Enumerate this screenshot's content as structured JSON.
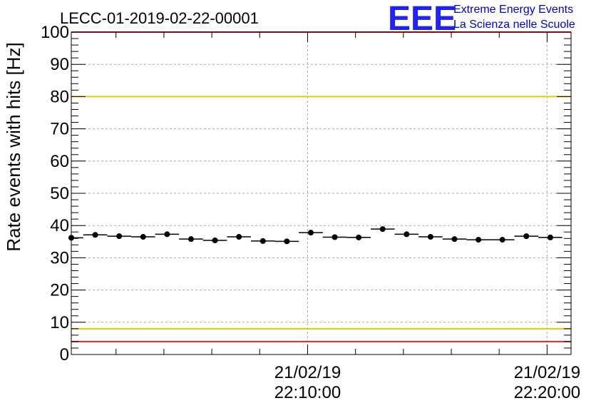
{
  "chart_data": {
    "type": "scatter",
    "title": "LECC-01-2019-02-22-00001",
    "xlabel": "",
    "ylabel": "Rate events with hits [Hz]",
    "ylim": [
      0,
      100
    ],
    "yticks": [
      0,
      10,
      20,
      30,
      40,
      50,
      60,
      70,
      80,
      90,
      100
    ],
    "xlim": [
      "21/02/19 22:00:08",
      "21/02/19 22:21:00"
    ],
    "xtick_labels": [
      {
        "at": "21/02/19 22:10:00",
        "date": "21/02/19",
        "time": "22:10:00"
      },
      {
        "at": "21/02/19 22:20:00",
        "date": "21/02/19",
        "time": "22:20:00"
      }
    ],
    "grid": true,
    "reference_lines": [
      {
        "y": 100,
        "color": "#e8222a"
      },
      {
        "y": 80,
        "color": "#f0c010"
      },
      {
        "y": 8,
        "color": "#f0c010"
      },
      {
        "y": 4,
        "color": "#e8222a"
      }
    ],
    "series": [
      {
        "x": [
          "21/02/19 22:00:08",
          "21/02/19 22:01:08",
          "21/02/19 22:02:08",
          "21/02/19 22:03:08",
          "21/02/19 22:04:08",
          "21/02/19 22:05:08",
          "21/02/19 22:06:08",
          "21/02/19 22:07:08",
          "21/02/19 22:08:08",
          "21/02/19 22:09:08",
          "21/02/19 22:10:08",
          "21/02/19 22:11:08",
          "21/02/19 22:12:08",
          "21/02/19 22:13:08",
          "21/02/19 22:14:08",
          "21/02/19 22:15:08",
          "21/02/19 22:16:08",
          "21/02/19 22:17:08",
          "21/02/19 22:18:08",
          "21/02/19 22:19:08",
          "21/02/19 22:20:08"
        ],
        "values": [
          36.2,
          37.1,
          36.7,
          36.5,
          37.3,
          35.8,
          35.4,
          36.5,
          35.2,
          35.1,
          37.8,
          36.4,
          36.3,
          38.9,
          37.3,
          36.5,
          35.8,
          35.6,
          35.6,
          36.7,
          36.3
        ],
        "marker_color": "#000000"
      }
    ]
  },
  "logo": {
    "mark": "EEE",
    "line1": "Extreme Energy Events",
    "line2": "La Scienza nelle Scuole",
    "colors": {
      "mark": "#2222ee",
      "text": "#0000cc"
    }
  }
}
